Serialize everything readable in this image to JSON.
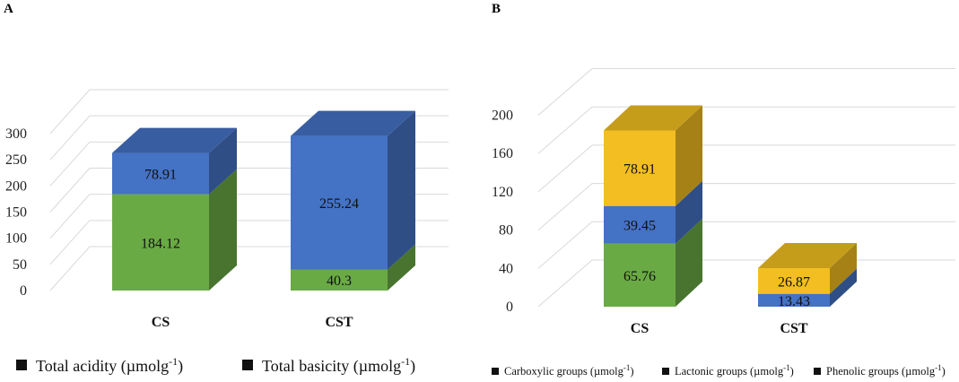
{
  "colors": {
    "green": "#6aaa45",
    "blue": "#4472c4",
    "gold": "#f2be21"
  },
  "chart_data": [
    {
      "panel": "A",
      "type": "bar",
      "stacked": true,
      "three_d": true,
      "categories": [
        "CS",
        "CST"
      ],
      "ylim": [
        0,
        300
      ],
      "yticks": [
        0,
        50,
        100,
        150,
        200,
        250,
        300
      ],
      "legend": "bottom",
      "series": [
        {
          "name": "Total acidity (µmolg",
          "sup": "-1",
          "close": ")",
          "color": "green",
          "values": [
            184.12,
            40.3
          ],
          "labels": [
            "184.12",
            "40.3"
          ]
        },
        {
          "name": "Total basicity (µmolg",
          "sup": "-1",
          "close": ")",
          "color": "blue",
          "values": [
            78.91,
            255.24
          ],
          "labels": [
            "78.91",
            "255.24"
          ]
        }
      ]
    },
    {
      "panel": "B",
      "type": "bar",
      "stacked": true,
      "three_d": true,
      "categories": [
        "CS",
        "CST"
      ],
      "ylim": [
        0,
        200
      ],
      "yticks": [
        0,
        40,
        80,
        120,
        160,
        200
      ],
      "legend": "bottom",
      "series": [
        {
          "name": "Carboxylic groups (µmolg",
          "sup": "-1",
          "close": ")",
          "color": "green",
          "values": [
            65.76,
            0
          ],
          "labels": [
            "65.76",
            ""
          ]
        },
        {
          "name": "Lactonic groups (µmolg",
          "sup": "-1",
          "close": ")",
          "color": "blue",
          "values": [
            39.45,
            13.43
          ],
          "labels": [
            "39.45",
            "13.43"
          ]
        },
        {
          "name": "Phenolic groups (µmolg",
          "sup": "-1",
          "close": ")",
          "color": "gold",
          "values": [
            78.91,
            26.87
          ],
          "labels": [
            "78.91",
            "26.87"
          ]
        }
      ]
    }
  ]
}
